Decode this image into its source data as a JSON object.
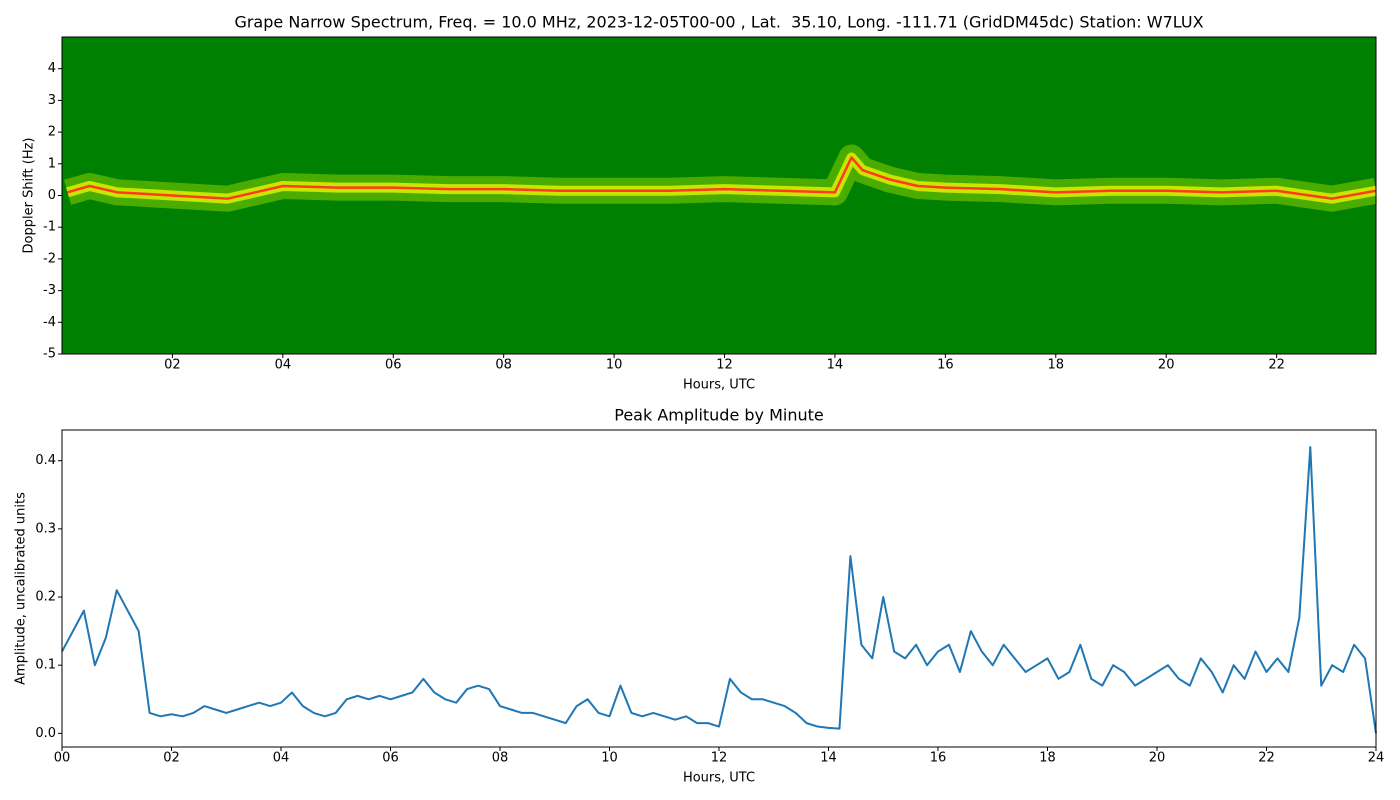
{
  "chart_data": [
    {
      "type": "spectrogram",
      "title": "Grape Narrow Spectrum, Freq. = 10.0 MHz, 2023-12-05T00-00 , Lat.  35.10, Long. -111.71 (GridDM45dc) Station: W7LUX",
      "xlabel": "Hours, UTC",
      "ylabel": "Doppler Shift (Hz)",
      "xlim": [
        0,
        23.8
      ],
      "ylim": [
        -5,
        5
      ],
      "xticks": [
        {
          "value": 2,
          "label": "02"
        },
        {
          "value": 4,
          "label": "04"
        },
        {
          "value": 6,
          "label": "06"
        },
        {
          "value": 8,
          "label": "08"
        },
        10,
        12,
        14,
        16,
        18,
        20,
        22
      ],
      "yticks": [
        -5,
        -4,
        -3,
        -2,
        -1,
        0,
        1,
        2,
        3,
        4
      ],
      "background": "#008000",
      "series": [
        {
          "color": "#ff3a1f",
          "x": [
            0.1,
            0.5,
            1,
            1.5,
            2,
            3,
            4,
            5,
            6,
            7,
            8,
            9,
            10,
            11,
            12,
            13,
            14,
            14.3,
            14.5,
            15,
            15.5,
            16,
            17,
            18,
            19,
            20,
            21,
            22,
            23,
            23.8
          ],
          "values": [
            0.1,
            0.3,
            0.1,
            0.05,
            0.0,
            -0.1,
            0.3,
            0.25,
            0.25,
            0.2,
            0.2,
            0.15,
            0.15,
            0.15,
            0.2,
            0.15,
            0.1,
            1.2,
            0.8,
            0.5,
            0.3,
            0.25,
            0.2,
            0.1,
            0.15,
            0.15,
            0.1,
            0.15,
            -0.1,
            0.15
          ]
        }
      ]
    },
    {
      "type": "line",
      "title": "Peak Amplitude by Minute",
      "xlabel": "Hours, UTC",
      "ylabel": "Amplitude, uncalibrated units",
      "xlim": [
        0,
        24
      ],
      "ylim": [
        -0.02,
        0.445
      ],
      "xticks": [
        {
          "value": 0,
          "label": "00"
        },
        {
          "value": 2,
          "label": "02"
        },
        {
          "value": 4,
          "label": "04"
        },
        {
          "value": 6,
          "label": "06"
        },
        {
          "value": 8,
          "label": "08"
        },
        10,
        12,
        14,
        16,
        18,
        20,
        22,
        24
      ],
      "yticks": [
        {
          "value": 0,
          "label": "0.0"
        },
        0.1,
        0.2,
        0.3,
        0.4
      ],
      "series": [
        {
          "color": "#1f77b4",
          "x": [
            0,
            0.2,
            0.4,
            0.6,
            0.8,
            1,
            1.2,
            1.4,
            1.6,
            1.8,
            2,
            2.2,
            2.4,
            2.6,
            2.8,
            3,
            3.2,
            3.4,
            3.6,
            3.8,
            4,
            4.2,
            4.4,
            4.6,
            4.8,
            5,
            5.2,
            5.4,
            5.6,
            5.8,
            6,
            6.2,
            6.4,
            6.6,
            6.8,
            7,
            7.2,
            7.4,
            7.6,
            7.8,
            8,
            8.2,
            8.4,
            8.6,
            8.8,
            9,
            9.2,
            9.4,
            9.6,
            9.8,
            10,
            10.2,
            10.4,
            10.6,
            10.8,
            11,
            11.2,
            11.4,
            11.6,
            11.8,
            12,
            12.2,
            12.4,
            12.6,
            12.8,
            13,
            13.2,
            13.4,
            13.6,
            13.8,
            14,
            14.2,
            14.4,
            14.6,
            14.8,
            15,
            15.2,
            15.4,
            15.6,
            15.8,
            16,
            16.2,
            16.4,
            16.6,
            16.8,
            17,
            17.2,
            17.4,
            17.6,
            17.8,
            18,
            18.2,
            18.4,
            18.6,
            18.8,
            19,
            19.2,
            19.4,
            19.6,
            19.8,
            20,
            20.2,
            20.4,
            20.6,
            20.8,
            21,
            21.2,
            21.4,
            21.6,
            21.8,
            22,
            22.2,
            22.4,
            22.6,
            22.8,
            23,
            23.2,
            23.4,
            23.6,
            23.8,
            24
          ],
          "values": [
            0.12,
            0.15,
            0.18,
            0.1,
            0.14,
            0.21,
            0.18,
            0.15,
            0.03,
            0.025,
            0.028,
            0.025,
            0.03,
            0.04,
            0.035,
            0.03,
            0.035,
            0.04,
            0.045,
            0.04,
            0.045,
            0.06,
            0.04,
            0.03,
            0.025,
            0.03,
            0.05,
            0.055,
            0.05,
            0.055,
            0.05,
            0.055,
            0.06,
            0.08,
            0.06,
            0.05,
            0.045,
            0.065,
            0.07,
            0.065,
            0.04,
            0.035,
            0.03,
            0.03,
            0.025,
            0.02,
            0.015,
            0.04,
            0.05,
            0.03,
            0.025,
            0.07,
            0.03,
            0.025,
            0.03,
            0.025,
            0.02,
            0.025,
            0.015,
            0.015,
            0.01,
            0.08,
            0.06,
            0.05,
            0.05,
            0.045,
            0.04,
            0.03,
            0.015,
            0.01,
            0.008,
            0.007,
            0.26,
            0.13,
            0.11,
            0.2,
            0.12,
            0.11,
            0.13,
            0.1,
            0.12,
            0.13,
            0.09,
            0.15,
            0.12,
            0.1,
            0.13,
            0.11,
            0.09,
            0.1,
            0.11,
            0.08,
            0.09,
            0.13,
            0.08,
            0.07,
            0.1,
            0.09,
            0.07,
            0.08,
            0.09,
            0.1,
            0.08,
            0.07,
            0.11,
            0.09,
            0.06,
            0.1,
            0.08,
            0.12,
            0.09,
            0.11,
            0.09,
            0.17,
            0.42,
            0.07,
            0.1,
            0.09,
            0.13,
            0.11,
            0.0
          ]
        }
      ]
    }
  ]
}
